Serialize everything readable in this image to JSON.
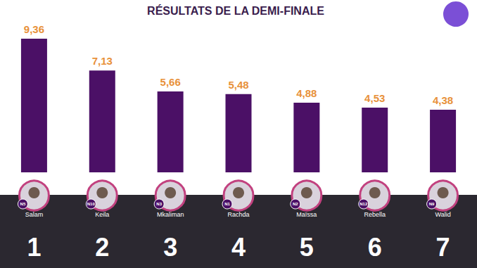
{
  "chart_data": {
    "type": "bar",
    "title": "RÉSULTATS DE LA DEMI-FINALE",
    "categories": [
      "Salam",
      "Keila",
      "Mkaliman",
      "Rachda",
      "Maïssa",
      "Rebella",
      "Walid"
    ],
    "values": [
      9.36,
      7.13,
      5.66,
      5.48,
      4.88,
      4.53,
      4.38
    ],
    "value_labels": [
      "9,36",
      "7,13",
      "5,66",
      "5,48",
      "4,88",
      "4,53",
      "4,38"
    ],
    "badges": [
      "N5",
      "N10",
      "N3",
      "N1",
      "N2",
      "N12",
      "N9"
    ],
    "ranks": [
      1,
      2,
      3,
      4,
      5,
      6,
      7
    ],
    "color": "#4b1066",
    "ylim": [
      0,
      10
    ],
    "yticks": [
      0,
      10
    ],
    "grid": false,
    "data_labels": true,
    "tick_labels": false
  }
}
